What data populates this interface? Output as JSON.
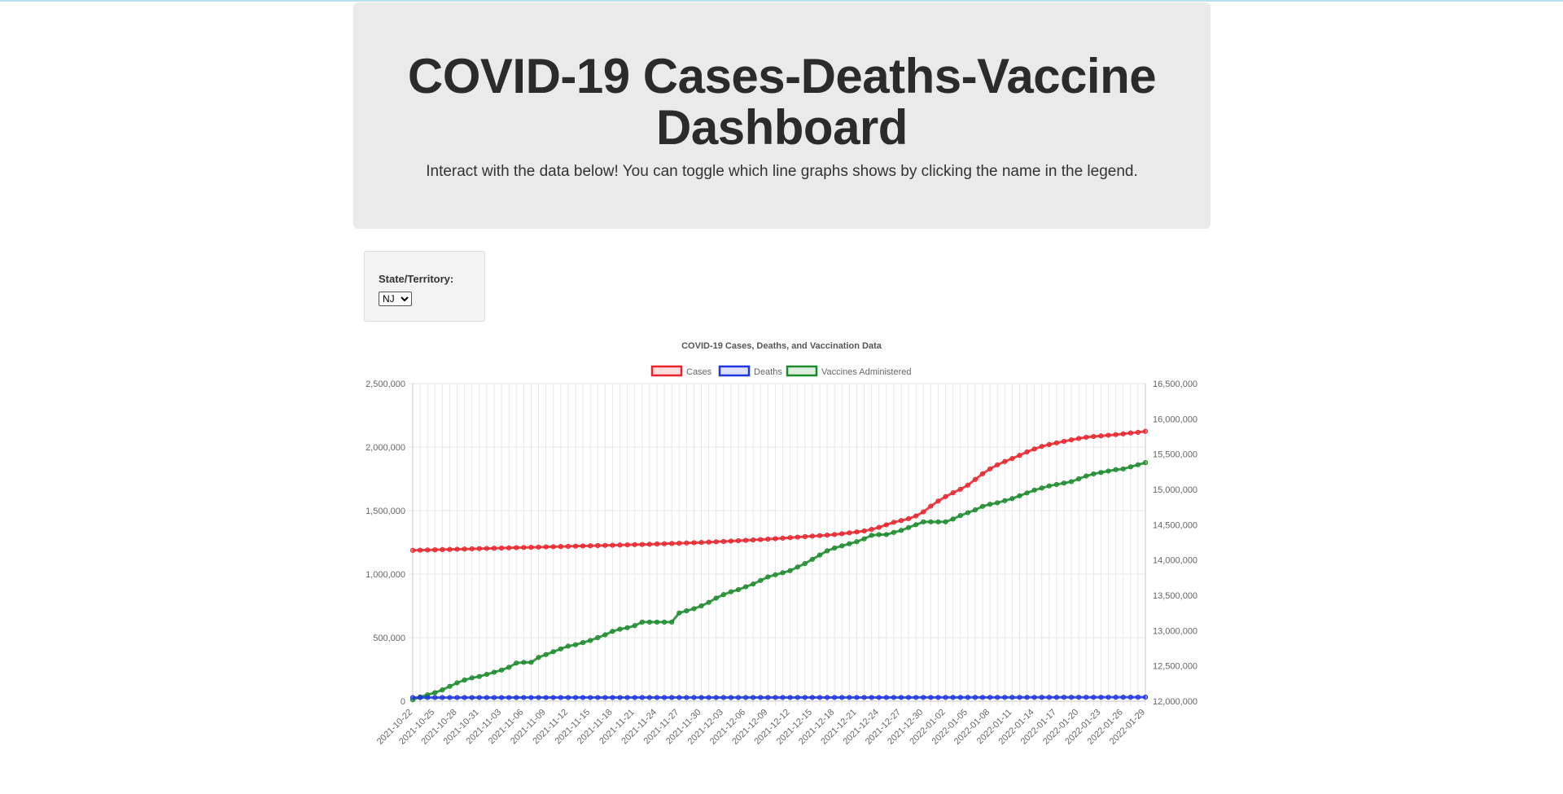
{
  "header": {
    "title": "COVID-19 Cases-Deaths-Vaccine Dashboard",
    "subtitle": "Interact with the data below! You can toggle which line graphs shows by clicking the name in the legend."
  },
  "filter": {
    "label": "State/Territory:",
    "selected": "NJ",
    "options": [
      "NJ"
    ]
  },
  "chart_data": {
    "type": "line",
    "title": "COVID-19 Cases, Deaths, and Vaccination Data",
    "legend_position": "top",
    "grid": true,
    "x": [
      "2021-10-22",
      "2021-10-23",
      "2021-10-24",
      "2021-10-25",
      "2021-10-26",
      "2021-10-27",
      "2021-10-28",
      "2021-10-29",
      "2021-10-30",
      "2021-10-31",
      "2021-11-01",
      "2021-11-02",
      "2021-11-03",
      "2021-11-04",
      "2021-11-05",
      "2021-11-06",
      "2021-11-07",
      "2021-11-08",
      "2021-11-09",
      "2021-11-10",
      "2021-11-11",
      "2021-11-12",
      "2021-11-13",
      "2021-11-14",
      "2021-11-15",
      "2021-11-16",
      "2021-11-17",
      "2021-11-18",
      "2021-11-19",
      "2021-11-20",
      "2021-11-21",
      "2021-11-22",
      "2021-11-23",
      "2021-11-24",
      "2021-11-25",
      "2021-11-26",
      "2021-11-27",
      "2021-11-28",
      "2021-11-29",
      "2021-11-30",
      "2021-12-01",
      "2021-12-02",
      "2021-12-03",
      "2021-12-04",
      "2021-12-05",
      "2021-12-06",
      "2021-12-07",
      "2021-12-08",
      "2021-12-09",
      "2021-12-10",
      "2021-12-11",
      "2021-12-12",
      "2021-12-13",
      "2021-12-14",
      "2021-12-15",
      "2021-12-16",
      "2021-12-17",
      "2021-12-18",
      "2021-12-19",
      "2021-12-20",
      "2021-12-21",
      "2021-12-22",
      "2021-12-23",
      "2021-12-24",
      "2021-12-25",
      "2021-12-26",
      "2021-12-27",
      "2021-12-28",
      "2021-12-29",
      "2021-12-30",
      "2021-12-31",
      "2022-01-01",
      "2022-01-02",
      "2022-01-03",
      "2022-01-04",
      "2022-01-05",
      "2022-01-06",
      "2022-01-07",
      "2022-01-08",
      "2022-01-09",
      "2022-01-10",
      "2022-01-11",
      "2022-01-12",
      "2022-01-13",
      "2022-01-14",
      "2022-01-15",
      "2022-01-16",
      "2022-01-17",
      "2022-01-18",
      "2022-01-19",
      "2022-01-20",
      "2022-01-21",
      "2022-01-22",
      "2022-01-23",
      "2022-01-24",
      "2022-01-25",
      "2022-01-26",
      "2022-01-27",
      "2022-01-28",
      "2022-01-29"
    ],
    "x_tick_labels": [
      "2021-10-22",
      "2021-10-25",
      "2021-10-28",
      "2021-10-31",
      "2021-11-03",
      "2021-11-06",
      "2021-11-09",
      "2021-11-12",
      "2021-11-15",
      "2021-11-18",
      "2021-11-21",
      "2021-11-24",
      "2021-11-27",
      "2021-11-30",
      "2021-12-03",
      "2021-12-06",
      "2021-12-09",
      "2021-12-12",
      "2021-12-15",
      "2021-12-18",
      "2021-12-21",
      "2021-12-24",
      "2021-12-27",
      "2021-12-30",
      "2022-01-02",
      "2022-01-05",
      "2022-01-08",
      "2022-01-11",
      "2022-01-14",
      "2022-01-17",
      "2022-01-20",
      "2022-01-23",
      "2022-01-26",
      "2022-01-29"
    ],
    "y_left": {
      "min": 0,
      "max": 2500000,
      "ticks": [
        "2,500,000",
        "2,000,000",
        "1,500,000",
        "1,000,000",
        "500,000",
        "0"
      ]
    },
    "y_right": {
      "min": 12000000,
      "max": 16500000,
      "ticks": [
        "16,500,000",
        "16,000,000",
        "15,500,000",
        "15,000,000",
        "14,500,000",
        "14,000,000",
        "13,500,000",
        "13,000,000",
        "12,500,000",
        "12,000,000"
      ]
    },
    "series": [
      {
        "name": "Cases",
        "axis": "left",
        "color": "#e8232b",
        "values": [
          1187000,
          1188500,
          1190000,
          1191500,
          1193000,
          1194500,
          1196000,
          1197500,
          1199000,
          1200500,
          1202000,
          1203500,
          1205000,
          1206500,
          1208000,
          1209500,
          1211000,
          1212500,
          1214000,
          1215500,
          1217000,
          1218500,
          1220000,
          1221500,
          1223000,
          1224500,
          1226000,
          1227500,
          1229000,
          1230500,
          1232000,
          1233500,
          1235000,
          1237000,
          1239000,
          1241000,
          1243000,
          1245000,
          1247000,
          1249500,
          1252000,
          1254500,
          1257000,
          1260000,
          1263000,
          1266000,
          1269000,
          1272000,
          1275500,
          1279000,
          1283000,
          1287000,
          1291000,
          1295000,
          1299000,
          1303000,
          1307000,
          1312000,
          1318000,
          1325000,
          1332000,
          1340000,
          1352000,
          1368000,
          1388000,
          1408000,
          1422000,
          1436000,
          1458000,
          1490000,
          1535000,
          1575000,
          1610000,
          1640000,
          1668000,
          1700000,
          1745000,
          1790000,
          1828000,
          1860000,
          1886000,
          1910000,
          1935000,
          1962000,
          1985000,
          2005000,
          2020000,
          2033000,
          2045000,
          2057000,
          2068000,
          2077000,
          2083000,
          2088000,
          2093000,
          2098000,
          2104000,
          2111000,
          2116000,
          2124000
        ]
      },
      {
        "name": "Deaths",
        "axis": "left",
        "color": "#1f35e0",
        "values": [
          28300,
          28310,
          28320,
          28330,
          28340,
          28350,
          28360,
          28370,
          28380,
          28390,
          28400,
          28410,
          28420,
          28430,
          28440,
          28450,
          28460,
          28470,
          28480,
          28490,
          28500,
          28510,
          28520,
          28530,
          28540,
          28550,
          28560,
          28570,
          28580,
          28590,
          28600,
          28610,
          28620,
          28630,
          28640,
          28650,
          28660,
          28670,
          28680,
          28690,
          28700,
          28720,
          28740,
          28760,
          28780,
          28800,
          28820,
          28840,
          28860,
          28880,
          28900,
          28920,
          28940,
          28960,
          28980,
          29000,
          29020,
          29040,
          29060,
          29080,
          29100,
          29120,
          29140,
          29160,
          29180,
          29200,
          29220,
          29250,
          29280,
          29310,
          29340,
          29380,
          29420,
          29460,
          29500,
          29560,
          29620,
          29680,
          29740,
          29800,
          29870,
          29940,
          30010,
          30080,
          30160,
          30240,
          30320,
          30400,
          30480,
          30560,
          30640,
          30720,
          30800,
          30880,
          30950,
          31020,
          31090,
          31160,
          31230,
          31300
        ]
      },
      {
        "name": "Vaccines Administered",
        "axis": "right",
        "color": "#1a8a2a",
        "values": [
          12020000,
          12060000,
          12090000,
          12120000,
          12160000,
          12210000,
          12260000,
          12300000,
          12330000,
          12350000,
          12380000,
          12410000,
          12440000,
          12480000,
          12540000,
          12550000,
          12550000,
          12620000,
          12660000,
          12700000,
          12740000,
          12780000,
          12800000,
          12830000,
          12860000,
          12900000,
          12940000,
          12990000,
          13020000,
          13040000,
          13070000,
          13120000,
          13120000,
          13120000,
          13120000,
          13120000,
          13250000,
          13280000,
          13310000,
          13350000,
          13400000,
          13460000,
          13510000,
          13550000,
          13580000,
          13620000,
          13660000,
          13710000,
          13760000,
          13790000,
          13820000,
          13850000,
          13900000,
          13950000,
          14010000,
          14070000,
          14130000,
          14170000,
          14200000,
          14230000,
          14260000,
          14300000,
          14350000,
          14360000,
          14360000,
          14390000,
          14420000,
          14460000,
          14500000,
          14540000,
          14540000,
          14540000,
          14540000,
          14580000,
          14630000,
          14670000,
          14710000,
          14760000,
          14790000,
          14810000,
          14840000,
          14870000,
          14910000,
          14950000,
          14990000,
          15020000,
          15050000,
          15070000,
          15090000,
          15110000,
          15150000,
          15190000,
          15220000,
          15240000,
          15260000,
          15280000,
          15290000,
          15320000,
          15350000,
          15380000
        ]
      }
    ]
  }
}
